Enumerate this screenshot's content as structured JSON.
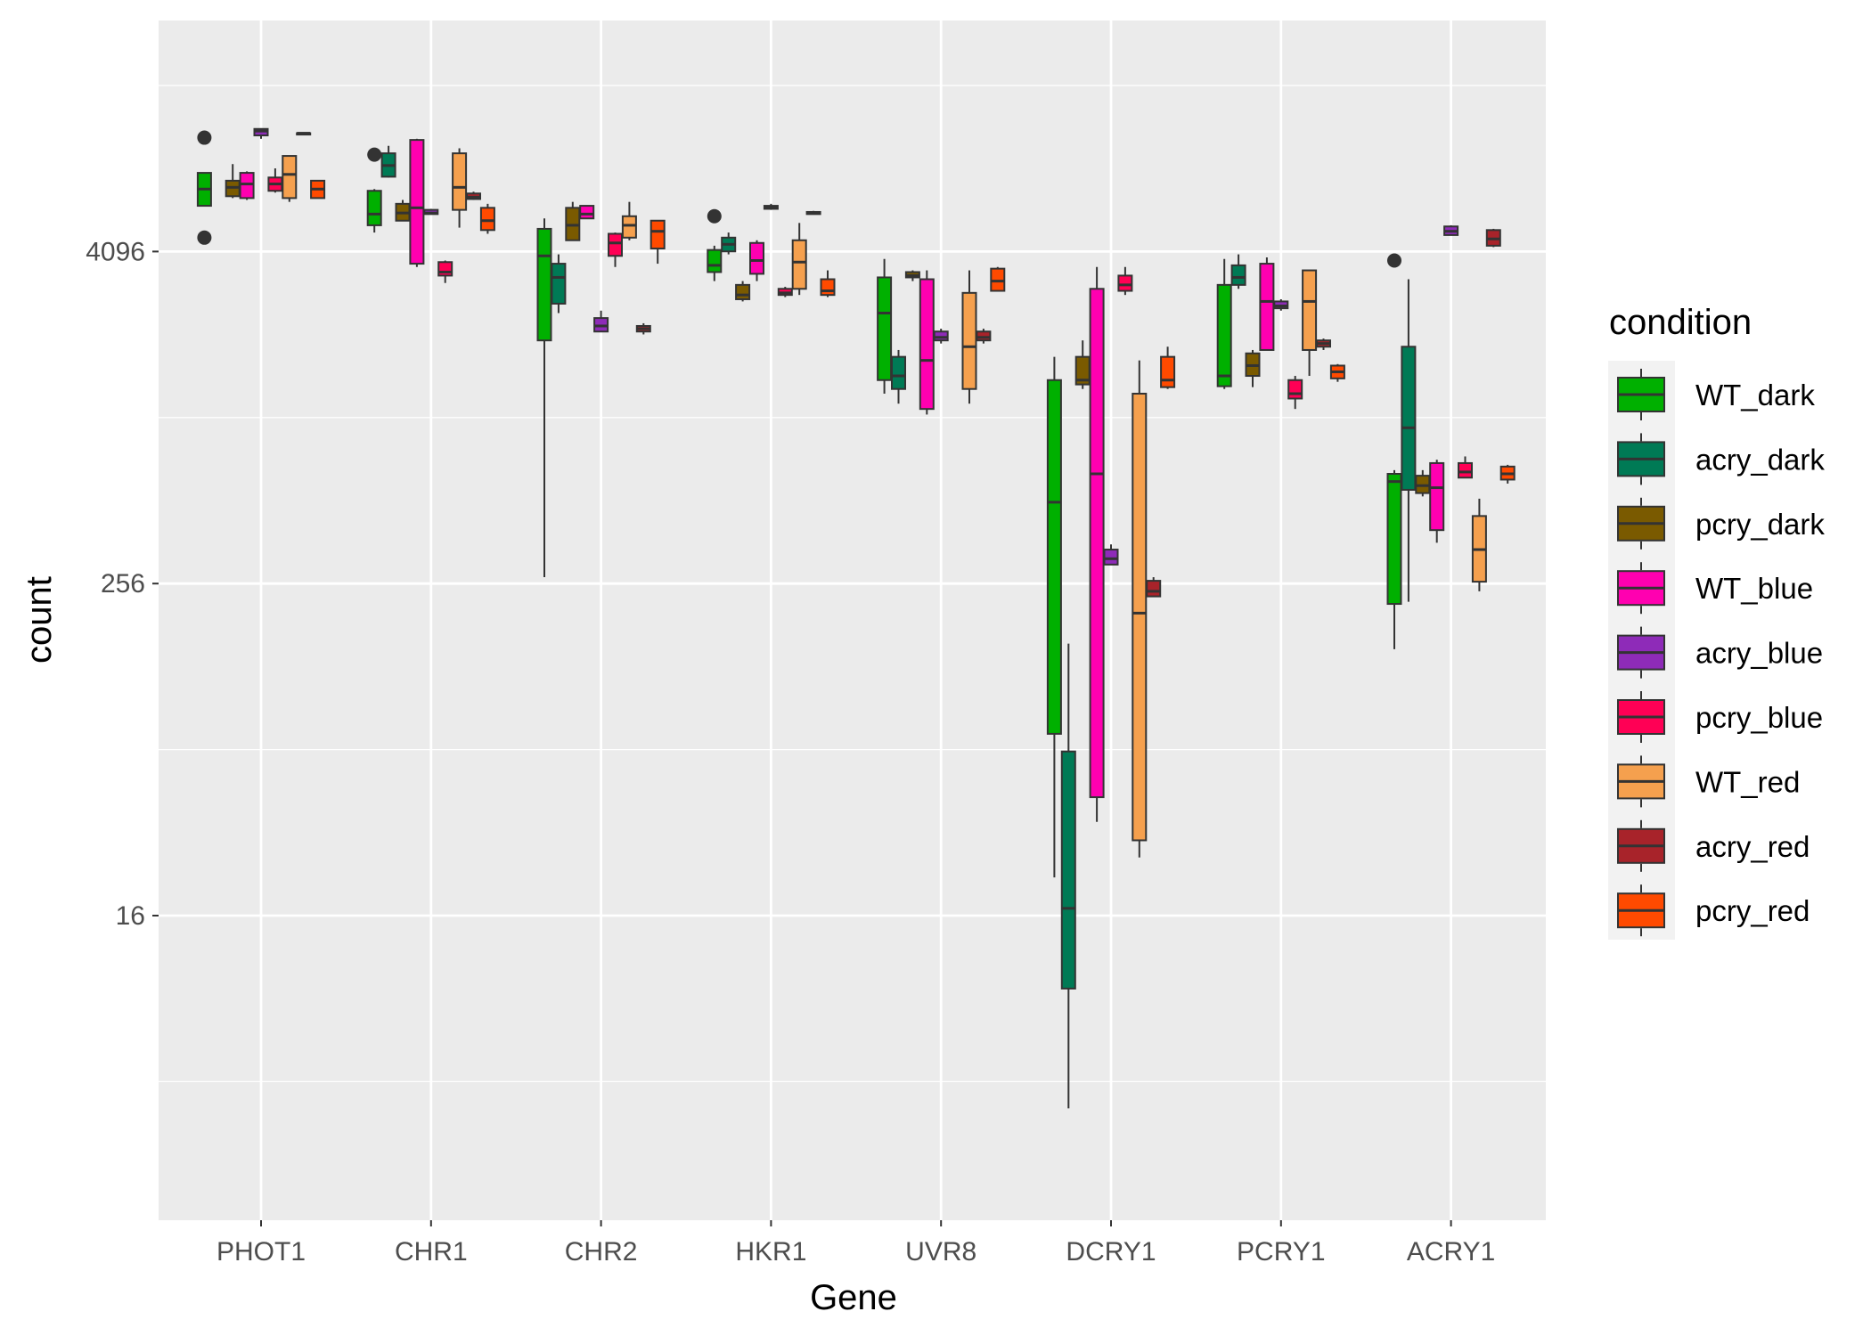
{
  "chart_data": {
    "type": "box",
    "xlabel": "Gene",
    "ylabel": "count",
    "y_scale": "log2",
    "ylim": [
      2,
      12000
    ],
    "y_ticks": [
      {
        "value": 16,
        "label": "16"
      },
      {
        "value": 256,
        "label": "256"
      },
      {
        "value": 4096,
        "label": "4096"
      }
    ],
    "categories": [
      "PHOT1",
      "CHR1",
      "CHR2",
      "HKR1",
      "UVR8",
      "DCRY1",
      "PCRY1",
      "ACRY1"
    ],
    "legend": {
      "title": "condition",
      "position": "right"
    },
    "grid": true,
    "series": [
      {
        "name": "WT_dark",
        "color": "#00B000",
        "boxes": [
          {
            "whisker_low": 6000,
            "q1": 6000,
            "median": 6900,
            "q3": 7900,
            "whisker_high": 7900,
            "outliers": [
              4600,
              10600
            ]
          },
          {
            "whisker_low": 4800,
            "q1": 5100,
            "median": 5600,
            "q3": 6800,
            "whisker_high": 6900,
            "outliers": [
              9200
            ]
          },
          {
            "whisker_low": 270,
            "q1": 1950,
            "median": 3950,
            "q3": 4950,
            "whisker_high": 5400,
            "outliers": []
          },
          {
            "whisker_low": 3200,
            "q1": 3450,
            "median": 3650,
            "q3": 4150,
            "whisker_high": 4300,
            "outliers": [
              5500
            ]
          },
          {
            "whisker_low": 1250,
            "q1": 1400,
            "median": 2450,
            "q3": 3300,
            "whisker_high": 3850,
            "outliers": []
          },
          {
            "whisker_low": 22,
            "q1": 73,
            "median": 505,
            "q3": 1400,
            "whisker_high": 1700,
            "outliers": []
          },
          {
            "whisker_low": 1300,
            "q1": 1330,
            "median": 1450,
            "q3": 3100,
            "whisker_high": 3850,
            "outliers": []
          },
          {
            "whisker_low": 148,
            "q1": 216,
            "median": 600,
            "q3": 640,
            "whisker_high": 660,
            "outliers": [
              3800
            ]
          }
        ]
      },
      {
        "name": "acry_dark",
        "color": "#007A55",
        "boxes": [
          null,
          {
            "whisker_low": 7600,
            "q1": 7650,
            "median": 8400,
            "q3": 9300,
            "whisker_high": 9900,
            "outliers": []
          },
          {
            "whisker_low": 2450,
            "q1": 2650,
            "median": 3300,
            "q3": 3700,
            "whisker_high": 4000,
            "outliers": []
          },
          {
            "whisker_low": 4000,
            "q1": 4100,
            "median": 4350,
            "q3": 4600,
            "whisker_high": 4800,
            "outliers": []
          },
          {
            "whisker_low": 1150,
            "q1": 1300,
            "median": 1450,
            "q3": 1700,
            "whisker_high": 1800,
            "outliers": []
          },
          {
            "whisker_low": 3.2,
            "q1": 8.7,
            "median": 17,
            "q3": 63,
            "whisker_high": 155,
            "outliers": []
          },
          {
            "whisker_low": 3000,
            "q1": 3100,
            "median": 3300,
            "q3": 3650,
            "whisker_high": 4000,
            "outliers": []
          },
          {
            "whisker_low": 220,
            "q1": 560,
            "median": 940,
            "q3": 1850,
            "whisker_high": 3250,
            "outliers": []
          }
        ]
      },
      {
        "name": "pcry_dark",
        "color": "#7A5A00",
        "boxes": [
          {
            "whisker_low": 6400,
            "q1": 6500,
            "median": 7000,
            "q3": 7400,
            "whisker_high": 8500,
            "outliers": []
          },
          {
            "whisker_low": 5300,
            "q1": 5300,
            "median": 5650,
            "q3": 6100,
            "whisker_high": 6300,
            "outliers": []
          },
          {
            "whisker_low": 4500,
            "q1": 4500,
            "median": 5100,
            "q3": 5900,
            "whisker_high": 6200,
            "outliers": []
          },
          {
            "whisker_low": 2700,
            "q1": 2750,
            "median": 2850,
            "q3": 3100,
            "whisker_high": 3200,
            "outliers": []
          },
          {
            "whisker_low": 3200,
            "q1": 3300,
            "median": 3350,
            "q3": 3450,
            "whisker_high": 3500,
            "outliers": []
          },
          {
            "whisker_low": 1300,
            "q1": 1350,
            "median": 1400,
            "q3": 1700,
            "whisker_high": 1950,
            "outliers": []
          },
          {
            "whisker_low": 1320,
            "q1": 1450,
            "median": 1580,
            "q3": 1750,
            "whisker_high": 1800,
            "outliers": []
          },
          {
            "whisker_low": 530,
            "q1": 545,
            "median": 580,
            "q3": 630,
            "whisker_high": 660,
            "outliers": []
          }
        ]
      },
      {
        "name": "WT_blue",
        "color": "#FF00B0",
        "boxes": [
          {
            "whisker_low": 6300,
            "q1": 6400,
            "median": 7200,
            "q3": 7900,
            "whisker_high": 8000,
            "outliers": []
          },
          {
            "whisker_low": 3600,
            "q1": 3700,
            "median": 5900,
            "q3": 10400,
            "whisker_high": 10500,
            "outliers": []
          },
          {
            "whisker_low": 5400,
            "q1": 5400,
            "median": 5600,
            "q3": 6000,
            "whisker_high": 6000,
            "outliers": []
          },
          {
            "whisker_low": 3200,
            "q1": 3400,
            "median": 3800,
            "q3": 4400,
            "whisker_high": 4500,
            "outliers": []
          },
          {
            "whisker_low": 1050,
            "q1": 1100,
            "median": 1650,
            "q3": 3250,
            "whisker_high": 3500,
            "outliers": []
          },
          {
            "whisker_low": 35,
            "q1": 43,
            "median": 640,
            "q3": 3000,
            "whisker_high": 3600,
            "outliers": []
          },
          {
            "whisker_low": 1800,
            "q1": 1800,
            "median": 2700,
            "q3": 3700,
            "whisker_high": 3900,
            "outliers": []
          },
          {
            "whisker_low": 360,
            "q1": 400,
            "median": 570,
            "q3": 700,
            "whisker_high": 720,
            "outliers": []
          }
        ]
      },
      {
        "name": "acry_blue",
        "color": "#8E2BB8",
        "boxes": [
          {
            "whisker_low": 10500,
            "q1": 10800,
            "median": 11200,
            "q3": 11400,
            "whisker_high": 11400,
            "outliers": []
          },
          {
            "whisker_low": 5600,
            "q1": 5600,
            "median": 5650,
            "q3": 5800,
            "whisker_high": 5850,
            "outliers": []
          },
          {
            "whisker_low": 2100,
            "q1": 2100,
            "median": 2200,
            "q3": 2350,
            "whisker_high": 2500,
            "outliers": []
          },
          {
            "whisker_low": 5800,
            "q1": 5850,
            "median": 5900,
            "q3": 6000,
            "whisker_high": 6100,
            "outliers": []
          },
          {
            "whisker_low": 1900,
            "q1": 1950,
            "median": 2000,
            "q3": 2100,
            "whisker_high": 2150,
            "outliers": []
          },
          {
            "whisker_low": 300,
            "q1": 300,
            "median": 315,
            "q3": 340,
            "whisker_high": 355,
            "outliers": []
          },
          {
            "whisker_low": 2500,
            "q1": 2550,
            "median": 2600,
            "q3": 2700,
            "whisker_high": 2750,
            "outliers": []
          },
          {
            "whisker_low": 4700,
            "q1": 4700,
            "median": 4850,
            "q3": 5050,
            "whisker_high": 5100,
            "outliers": []
          }
        ]
      },
      {
        "name": "pcry_blue",
        "color": "#FF0055",
        "boxes": [
          {
            "whisker_low": 6700,
            "q1": 6800,
            "median": 7200,
            "q3": 7600,
            "whisker_high": 8200,
            "outliers": []
          },
          {
            "whisker_low": 3150,
            "q1": 3350,
            "median": 3450,
            "q3": 3750,
            "whisker_high": 3800,
            "outliers": []
          },
          {
            "whisker_low": 3600,
            "q1": 3950,
            "median": 4400,
            "q3": 4750,
            "whisker_high": 4800,
            "outliers": []
          },
          {
            "whisker_low": 2800,
            "q1": 2850,
            "median": 2900,
            "q3": 3000,
            "whisker_high": 3050,
            "outliers": []
          },
          null,
          {
            "whisker_low": 2850,
            "q1": 2950,
            "median": 3100,
            "q3": 3350,
            "whisker_high": 3600,
            "outliers": []
          },
          {
            "whisker_low": 1100,
            "q1": 1200,
            "median": 1250,
            "q3": 1400,
            "whisker_high": 1450,
            "outliers": []
          },
          {
            "whisker_low": 620,
            "q1": 620,
            "median": 650,
            "q3": 700,
            "whisker_high": 740,
            "outliers": []
          }
        ]
      },
      {
        "name": "WT_red",
        "color": "#F5A04E",
        "boxes": [
          {
            "whisker_low": 6200,
            "q1": 6400,
            "median": 7800,
            "q3": 9100,
            "whisker_high": 9100,
            "outliers": []
          },
          {
            "whisker_low": 5000,
            "q1": 5800,
            "median": 7000,
            "q3": 9300,
            "whisker_high": 9700,
            "outliers": []
          },
          {
            "whisker_low": 4500,
            "q1": 4600,
            "median": 5100,
            "q3": 5500,
            "whisker_high": 6200,
            "outliers": []
          },
          {
            "whisker_low": 2850,
            "q1": 3000,
            "median": 3750,
            "q3": 4500,
            "whisker_high": 5200,
            "outliers": []
          },
          {
            "whisker_low": 1150,
            "q1": 1300,
            "median": 1850,
            "q3": 2900,
            "whisker_high": 3500,
            "outliers": []
          },
          {
            "whisker_low": 26,
            "q1": 30,
            "median": 200,
            "q3": 1250,
            "whisker_high": 1650,
            "outliers": []
          },
          {
            "whisker_low": 1450,
            "q1": 1800,
            "median": 2700,
            "q3": 3500,
            "whisker_high": 3500,
            "outliers": []
          },
          {
            "whisker_low": 240,
            "q1": 260,
            "median": 340,
            "q3": 450,
            "whisker_high": 520,
            "outliers": []
          }
        ]
      },
      {
        "name": "acry_red",
        "color": "#A8232A",
        "boxes": [
          {
            "whisker_low": 11000,
            "q1": 11000,
            "median": 11000,
            "q3": 11000,
            "whisker_high": 11000,
            "outliers": []
          },
          {
            "whisker_low": 6300,
            "q1": 6350,
            "median": 6450,
            "q3": 6650,
            "whisker_high": 6750,
            "outliers": []
          },
          {
            "whisker_low": 2050,
            "q1": 2100,
            "median": 2150,
            "q3": 2200,
            "whisker_high": 2250,
            "outliers": []
          },
          {
            "whisker_low": 5600,
            "q1": 5600,
            "median": 5650,
            "q3": 5700,
            "whisker_high": 5750,
            "outliers": []
          },
          {
            "whisker_low": 1900,
            "q1": 1950,
            "median": 2000,
            "q3": 2100,
            "whisker_high": 2150,
            "outliers": []
          },
          {
            "whisker_low": 230,
            "q1": 230,
            "median": 240,
            "q3": 262,
            "whisker_high": 270,
            "outliers": []
          },
          {
            "whisker_low": 1800,
            "q1": 1850,
            "median": 1900,
            "q3": 1950,
            "whisker_high": 1980,
            "outliers": []
          },
          {
            "whisker_low": 4250,
            "q1": 4300,
            "median": 4550,
            "q3": 4900,
            "whisker_high": 4950,
            "outliers": []
          }
        ]
      },
      {
        "name": "pcry_red",
        "color": "#FF4A00",
        "boxes": [
          {
            "whisker_low": 6400,
            "q1": 6400,
            "median": 6900,
            "q3": 7400,
            "whisker_high": 7400,
            "outliers": []
          },
          {
            "whisker_low": 4750,
            "q1": 4900,
            "median": 5300,
            "q3": 5900,
            "whisker_high": 6100,
            "outliers": []
          },
          {
            "whisker_low": 3700,
            "q1": 4200,
            "median": 4850,
            "q3": 5300,
            "whisker_high": 5300,
            "outliers": []
          },
          {
            "whisker_low": 2800,
            "q1": 2850,
            "median": 2950,
            "q3": 3250,
            "whisker_high": 3500,
            "outliers": []
          },
          {
            "whisker_low": 2950,
            "q1": 2950,
            "median": 3200,
            "q3": 3550,
            "whisker_high": 3600,
            "outliers": []
          },
          {
            "whisker_low": 1300,
            "q1": 1320,
            "median": 1400,
            "q3": 1700,
            "whisker_high": 1850,
            "outliers": []
          },
          {
            "whisker_low": 1380,
            "q1": 1420,
            "median": 1500,
            "q3": 1580,
            "whisker_high": 1600,
            "outliers": []
          },
          {
            "whisker_low": 590,
            "q1": 610,
            "median": 640,
            "q3": 680,
            "whisker_high": 690,
            "outliers": []
          }
        ]
      }
    ]
  }
}
